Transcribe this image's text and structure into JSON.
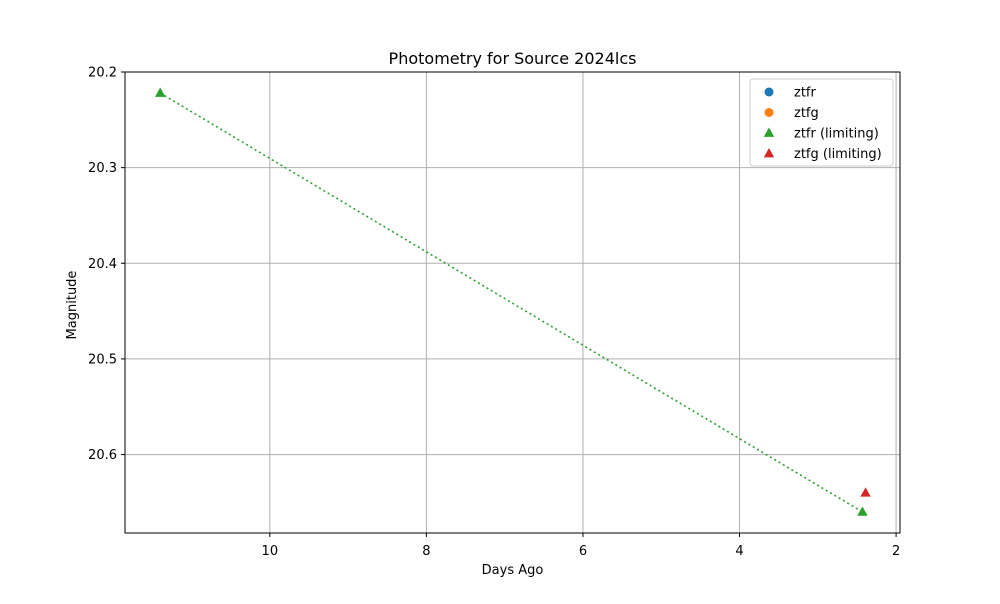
{
  "chart_data": {
    "type": "scatter",
    "title": "Photometry for Source 2024lcs",
    "xlabel": "Days Ago",
    "ylabel": "Magnitude",
    "x_inverted": true,
    "y_inverted": true,
    "xlim": [
      11.85,
      1.95
    ],
    "ylim": [
      20.682,
      20.2
    ],
    "x_ticks": [
      10,
      8,
      6,
      4,
      2
    ],
    "x_tick_labels": [
      "10",
      "8",
      "6",
      "4",
      "2"
    ],
    "y_ticks": [
      20.2,
      20.3,
      20.4,
      20.5,
      20.6
    ],
    "y_tick_labels": [
      "20.2",
      "20.3",
      "20.4",
      "20.5",
      "20.6"
    ],
    "grid": true,
    "legend_position": "top-right",
    "series": [
      {
        "name": "ztfr",
        "marker": "circle",
        "color": "#1f77b4",
        "points": []
      },
      {
        "name": "ztfg",
        "marker": "circle",
        "color": "#ff7f0e",
        "points": []
      },
      {
        "name": "ztfr (limiting)",
        "marker": "triangle",
        "color": "#2ca02c",
        "line": "dotted",
        "points": [
          {
            "x": 11.4,
            "y": 20.222
          },
          {
            "x": 2.43,
            "y": 20.66
          }
        ]
      },
      {
        "name": "ztfg (limiting)",
        "marker": "triangle",
        "color": "#d62728",
        "points": [
          {
            "x": 2.39,
            "y": 20.64
          }
        ]
      }
    ]
  }
}
